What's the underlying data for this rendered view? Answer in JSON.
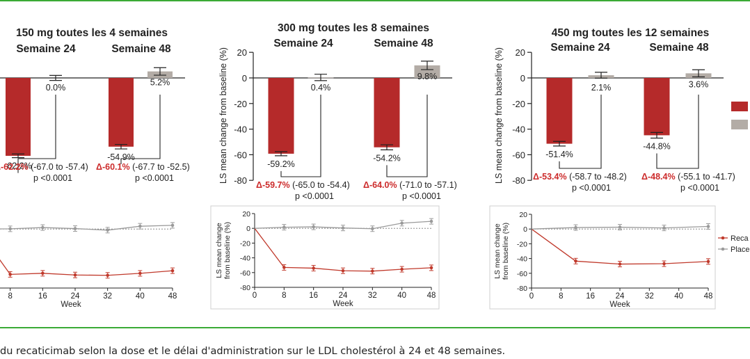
{
  "caption": "du recaticimab selon la dose et le délai d'administration sur le LDL cholestérol à 24 et 48 semaines.",
  "colors": {
    "drug": "#b52a2a",
    "placebo": "#b3aca6",
    "delta": "#cc2b2b",
    "frame": "#3aaa35",
    "line_drug": "#c0392b",
    "line_placebo": "#9a9a9a"
  },
  "legend_labels": [
    "Reca",
    "Place"
  ],
  "chart_data": [
    {
      "type": "bar",
      "title": "150 mg toutes les 4 semaines",
      "ylabel": "",
      "ylim": [
        -80,
        20
      ],
      "yticks": [],
      "categories": [
        "Semaine 24",
        "Semaine 48"
      ],
      "series": [
        {
          "values": [
            -62.2,
            -54.9
          ],
          "errors": [
            1.5,
            1.8
          ],
          "labels": [
            "-62.2%",
            "-54.9%"
          ]
        },
        {
          "values": [
            0.0,
            5.2
          ],
          "errors": [
            2.0,
            3.0
          ],
          "labels": [
            "0.0%",
            "5.2%"
          ]
        }
      ],
      "deltas": [
        {
          "value": "Δ-62.2%",
          "ci": " (-67.0 to -57.4)",
          "p": "p <0.0001"
        },
        {
          "value": "Δ-60.1%",
          "ci": " (-67.7 to -52.5)",
          "p": "p <0.0001"
        }
      ]
    },
    {
      "type": "bar",
      "title": "300 mg toutes les 8 semaines",
      "ylabel": "LS mean change from baseline (%)",
      "ylim": [
        -80,
        20
      ],
      "yticks": [
        20,
        0,
        -20,
        -40,
        -60,
        -80
      ],
      "categories": [
        "Semaine 24",
        "Semaine 48"
      ],
      "series": [
        {
          "values": [
            -59.2,
            -54.2
          ],
          "errors": [
            1.6,
            2.0
          ],
          "labels": [
            "-59.2%",
            "-54.2%"
          ]
        },
        {
          "values": [
            0.4,
            9.8
          ],
          "errors": [
            2.5,
            3.3
          ],
          "labels": [
            "0.4%",
            "9.8%"
          ]
        }
      ],
      "deltas": [
        {
          "value": "Δ-59.7%",
          "ci": " (-65.0 to -54.4)",
          "p": "p <0.0001"
        },
        {
          "value": "Δ-64.0%",
          "ci": " (-71.0 to -57.1)",
          "p": "p <0.0001"
        }
      ]
    },
    {
      "type": "bar",
      "title": "450 mg toutes les 12 semaines",
      "ylabel": "LS mean change from baseline (%)",
      "ylim": [
        -80,
        20
      ],
      "yticks": [
        20,
        0,
        -20,
        -40,
        -60,
        -80
      ],
      "categories": [
        "Semaine 24",
        "Semaine 48"
      ],
      "series": [
        {
          "values": [
            -51.4,
            -44.8
          ],
          "errors": [
            1.8,
            2.2
          ],
          "labels": [
            "-51.4%",
            "-44.8%"
          ]
        },
        {
          "values": [
            2.1,
            3.6
          ],
          "errors": [
            2.3,
            2.8
          ],
          "labels": [
            "2.1%",
            "3.6%"
          ]
        }
      ],
      "deltas": [
        {
          "value": "Δ-53.4%",
          "ci": " (-58.7 to -48.2)",
          "p": "p <0.0001"
        },
        {
          "value": "Δ-48.4%",
          "ci": " (-55.1 to -41.7)",
          "p": "p <0.0001"
        }
      ]
    },
    {
      "type": "line",
      "xlabel": "Week",
      "ylabel": "",
      "xticks": [
        8,
        16,
        24,
        32,
        40,
        48
      ],
      "yticks": [],
      "xlim": [
        0,
        48
      ],
      "ylim": [
        -80,
        20
      ],
      "series": [
        {
          "x": [
            0,
            8,
            16,
            24,
            32,
            40,
            48
          ],
          "values": [
            0,
            -61.5,
            -60.0,
            -62.3,
            -62.8,
            -60.1,
            -56.5
          ]
        },
        {
          "x": [
            0,
            8,
            16,
            24,
            32,
            40,
            48
          ],
          "values": [
            0,
            0.3,
            2.0,
            0.6,
            -1.5,
            3.8,
            5.0
          ]
        }
      ]
    },
    {
      "type": "line",
      "xlabel": "Week",
      "ylabel": "LS mean change from baseline (%)",
      "xticks": [
        0,
        8,
        16,
        24,
        32,
        40,
        48
      ],
      "yticks": [
        20,
        0,
        -20,
        -40,
        -60,
        -80
      ],
      "xlim": [
        0,
        48
      ],
      "ylim": [
        -80,
        20
      ],
      "series": [
        {
          "x": [
            0,
            8,
            16,
            24,
            32,
            40,
            48
          ],
          "values": [
            0,
            -53.0,
            -54.0,
            -57.5,
            -58.0,
            -55.5,
            -53.5
          ]
        },
        {
          "x": [
            0,
            8,
            16,
            24,
            32,
            40,
            48
          ],
          "values": [
            0,
            1.5,
            2.0,
            0.5,
            -0.5,
            7.0,
            9.5
          ]
        }
      ]
    },
    {
      "type": "line",
      "xlabel": "Week",
      "ylabel": "LS mean change from baseline (%)",
      "xticks": [
        0,
        8,
        16,
        24,
        32,
        40,
        48
      ],
      "yticks": [
        20,
        0,
        -20,
        -40,
        -60,
        -80
      ],
      "xlim": [
        0,
        48
      ],
      "ylim": [
        -80,
        20
      ],
      "series": [
        {
          "name": "Reca",
          "x": [
            0,
            12,
            24,
            36,
            48
          ],
          "values": [
            0,
            -43.5,
            -47.5,
            -47.0,
            -44.0
          ]
        },
        {
          "name": "Place",
          "x": [
            0,
            12,
            24,
            36,
            48
          ],
          "values": [
            0,
            2.0,
            2.5,
            1.5,
            3.5
          ]
        }
      ]
    }
  ]
}
